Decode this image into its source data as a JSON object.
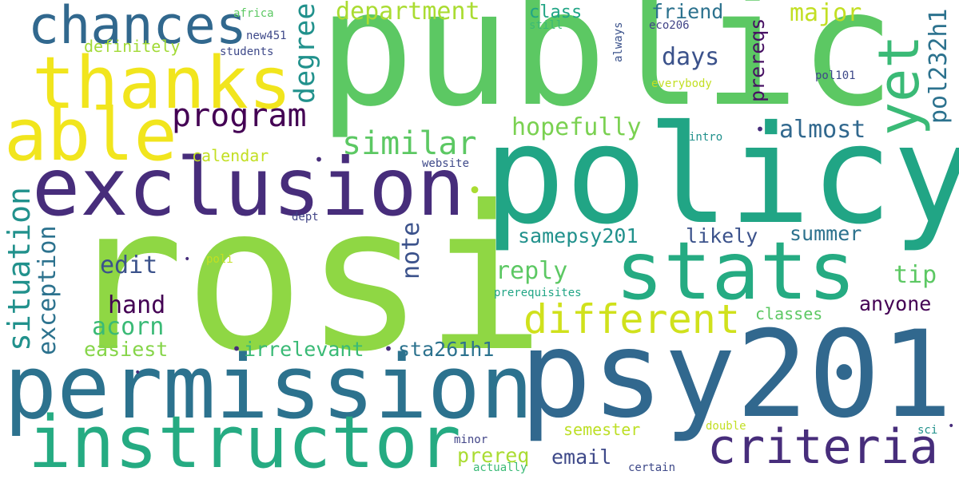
{
  "colors": {
    "background": "#ffffff",
    "dark_purple": "#472d7b",
    "navy": "#3b528b",
    "steel_blue": "#2c728e",
    "teal": "#21908d",
    "sea_green": "#27ad81",
    "green": "#5cc863",
    "lime": "#aadc32",
    "yellow": "#e6e419"
  },
  "words": [
    {
      "text": "public",
      "color": "#5cc863"
    },
    {
      "text": "rosi",
      "color": "#8fd744"
    },
    {
      "text": "policy",
      "color": "#21a585"
    },
    {
      "text": "psy201",
      "color": "#31688e"
    },
    {
      "text": "permission",
      "color": "#2c728e"
    },
    {
      "text": "exclusion",
      "color": "#472d7b"
    },
    {
      "text": "instructor",
      "color": "#25ab82"
    },
    {
      "text": "stats",
      "color": "#25ab82"
    },
    {
      "text": "thanks",
      "color": "#f1e51d"
    },
    {
      "text": "able",
      "color": "#f1e51d"
    },
    {
      "text": "chances",
      "color": "#31688e"
    },
    {
      "text": "yet",
      "color": "#3aba76"
    },
    {
      "text": "criteria",
      "color": "#472d7b"
    },
    {
      "text": "different",
      "color": "#d0e11c"
    },
    {
      "text": "program",
      "color": "#440154"
    },
    {
      "text": "similar",
      "color": "#5cc863"
    },
    {
      "text": "department",
      "color": "#aadc32"
    },
    {
      "text": "degree",
      "color": "#21918c"
    },
    {
      "text": "situation",
      "color": "#21918c"
    },
    {
      "text": "exception",
      "color": "#2c728e"
    },
    {
      "text": "note",
      "color": "#3b528b"
    },
    {
      "text": "hopefully",
      "color": "#7ad151"
    },
    {
      "text": "almost",
      "color": "#31688e"
    },
    {
      "text": "days",
      "color": "#3b528b"
    },
    {
      "text": "major",
      "color": "#c2df23"
    },
    {
      "text": "friend",
      "color": "#2c728e"
    },
    {
      "text": "class",
      "color": "#21a585"
    },
    {
      "text": "prereqs",
      "color": "#471063"
    },
    {
      "text": "pol232h1",
      "color": "#2c728e"
    },
    {
      "text": "samepsy201",
      "color": "#21918c"
    },
    {
      "text": "likely",
      "color": "#3b528b"
    },
    {
      "text": "summer",
      "color": "#2c728e"
    },
    {
      "text": "reply",
      "color": "#5cc863"
    },
    {
      "text": "tip",
      "color": "#5cc863"
    },
    {
      "text": "edit",
      "color": "#3b528b"
    },
    {
      "text": "hand",
      "color": "#440154"
    },
    {
      "text": "acorn",
      "color": "#3aba76"
    },
    {
      "text": "anyone",
      "color": "#440154"
    },
    {
      "text": "easiest",
      "color": "#86d549"
    },
    {
      "text": "irrelevant",
      "color": "#3aba76"
    },
    {
      "text": "sta261h1",
      "color": "#2c728e"
    },
    {
      "text": "classes",
      "color": "#5cc863"
    },
    {
      "text": "calendar",
      "color": "#c2df23"
    },
    {
      "text": "definitely",
      "color": "#a2da37"
    },
    {
      "text": "email",
      "color": "#3e4989"
    },
    {
      "text": "prereq",
      "color": "#aadc32"
    },
    {
      "text": "semester",
      "color": "#bddf26"
    },
    {
      "text": "africa",
      "color": "#5cc863"
    },
    {
      "text": "new451",
      "color": "#3e4989"
    },
    {
      "text": "students",
      "color": "#3e4989"
    },
    {
      "text": "still",
      "color": "#3aba76"
    },
    {
      "text": "eco206",
      "color": "#414487"
    },
    {
      "text": "always",
      "color": "#3b528b"
    },
    {
      "text": "everybody",
      "color": "#c2df23"
    },
    {
      "text": "pol101",
      "color": "#3e4989"
    },
    {
      "text": "intro",
      "color": "#21918c"
    },
    {
      "text": "website",
      "color": "#3e4989"
    },
    {
      "text": "dept",
      "color": "#414487"
    },
    {
      "text": "poli",
      "color": "#c2df23"
    },
    {
      "text": "prerequisites",
      "color": "#21a585"
    },
    {
      "text": "minor",
      "color": "#414487"
    },
    {
      "text": "actually",
      "color": "#3aba76"
    },
    {
      "text": "certain",
      "color": "#3e4989"
    },
    {
      "text": "double",
      "color": "#c2df23"
    },
    {
      "text": "sci",
      "color": "#21918c"
    },
    {
      "text": "•",
      "color": "#472d7b"
    }
  ]
}
